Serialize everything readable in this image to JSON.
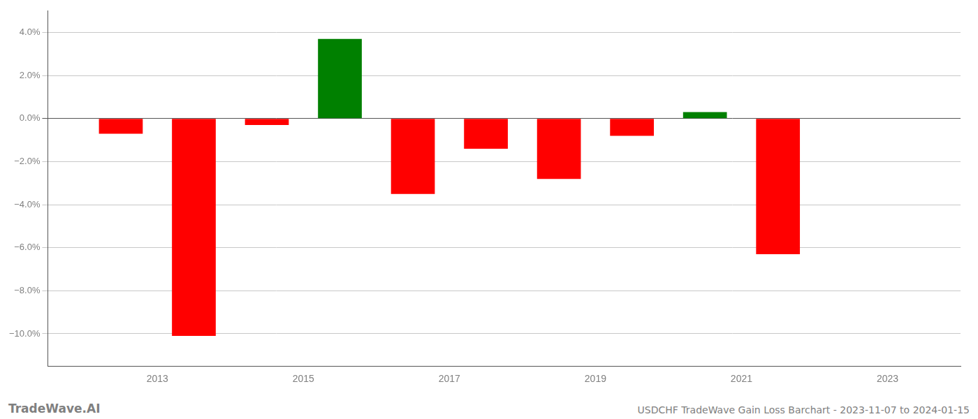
{
  "chart_data": {
    "type": "bar",
    "x": [
      2012.5,
      2013.5,
      2014.5,
      2015.5,
      2016.5,
      2017.5,
      2018.5,
      2019.5,
      2020.5,
      2021.5
    ],
    "values": [
      -0.007,
      -0.101,
      -0.003,
      0.037,
      -0.035,
      -0.014,
      -0.028,
      -0.008,
      0.003,
      -0.063
    ],
    "colors": [
      "#ff0000",
      "#ff0000",
      "#ff0000",
      "#008000",
      "#ff0000",
      "#ff0000",
      "#ff0000",
      "#ff0000",
      "#008000",
      "#ff0000"
    ],
    "xlim": [
      2011.5,
      2024.0
    ],
    "xticks": [
      2013,
      2015,
      2017,
      2019,
      2021,
      2023
    ],
    "ylim": [
      -0.115,
      0.05
    ],
    "yticks": [
      {
        "value": -0.1,
        "label": "−10.0%"
      },
      {
        "value": -0.08,
        "label": "−8.0%"
      },
      {
        "value": -0.06,
        "label": "−6.0%"
      },
      {
        "value": -0.04,
        "label": "−4.0%"
      },
      {
        "value": -0.02,
        "label": "−2.0%"
      },
      {
        "value": 0.0,
        "label": "0.0%"
      },
      {
        "value": 0.02,
        "label": "2.0%"
      },
      {
        "value": 0.04,
        "label": "4.0%"
      }
    ],
    "grid": "y",
    "annotations": [
      "TradeWave.AI",
      "USDCHF TradeWave Gain Loss Barchart - 2023-11-07 to 2024-01-15"
    ]
  }
}
